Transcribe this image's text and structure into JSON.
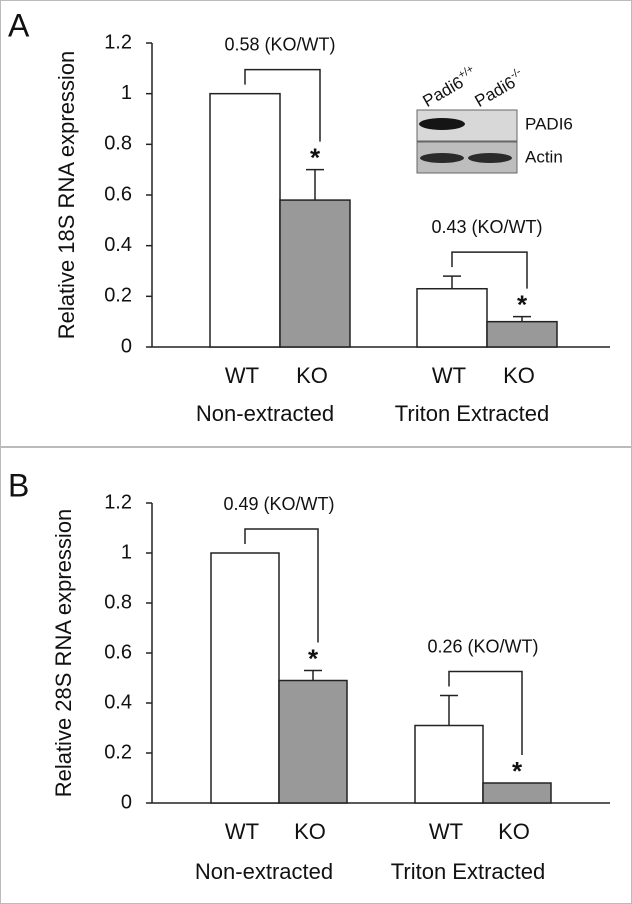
{
  "chart_data": [
    {
      "type": "bar",
      "panel": "A",
      "ylabel": "Relative 18S RNA expression",
      "groups": [
        "Non-extracted",
        "Triton Extracted"
      ],
      "series": [
        {
          "name": "WT",
          "color": "#ffffff",
          "values": [
            1,
            0.23
          ],
          "errors": [
            null,
            0.05
          ]
        },
        {
          "name": "KO",
          "color": "#999999",
          "values": [
            0.58,
            0.1
          ],
          "errors": [
            0.12,
            0.02
          ],
          "significance": [
            "*",
            "*"
          ]
        }
      ],
      "ratio_labels": [
        "0.58 (KO/WT)",
        "0.43 (KO/WT)"
      ],
      "ylim": [
        0,
        1.2
      ],
      "yticks": [
        0,
        0.2,
        0.4,
        0.6,
        0.8,
        1,
        1.2
      ],
      "inset": {
        "lanes": [
          {
            "name": "Padi6",
            "sup": "+/+"
          },
          {
            "name": "Padi6",
            "sup": "-/-"
          }
        ],
        "bands": [
          "PADI6",
          "Actin"
        ]
      }
    },
    {
      "type": "bar",
      "panel": "B",
      "ylabel": "Relative 28S RNA expression",
      "groups": [
        "Non-extracted",
        "Triton Extracted"
      ],
      "series": [
        {
          "name": "WT",
          "color": "#ffffff",
          "values": [
            1,
            0.31
          ],
          "errors": [
            null,
            0.12
          ]
        },
        {
          "name": "KO",
          "color": "#999999",
          "values": [
            0.49,
            0.08
          ],
          "errors": [
            0.04,
            null
          ],
          "significance": [
            "*",
            "*"
          ]
        }
      ],
      "ratio_labels": [
        "0.49 (KO/WT)",
        "0.26 (KO/WT)"
      ],
      "ylim": [
        0,
        1.2
      ],
      "yticks": [
        0,
        0.2,
        0.4,
        0.6,
        0.8,
        1,
        1.2
      ]
    }
  ]
}
